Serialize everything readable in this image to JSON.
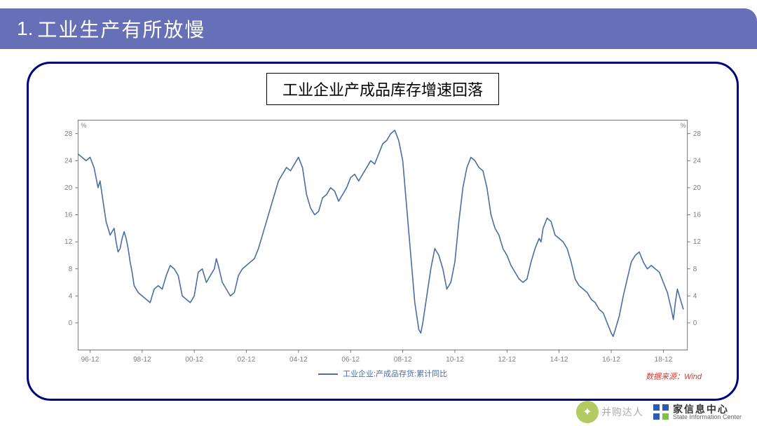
{
  "header": {
    "number": "1.",
    "title": "工业生产有所放慢"
  },
  "chart": {
    "type": "line",
    "title": "工业企业产成品库存增速回落",
    "title_fontsize": 22,
    "legend_label": "工业企业:产成品存货:累计同比",
    "source_label": "数据来源：Wind",
    "line_color": "#4a6fa5",
    "line_width": 1.6,
    "axis_color": "#5b5b5b",
    "tick_color": "#808080",
    "tick_fontsize": 10,
    "background_color": "#ffffff",
    "ylim": [
      -4,
      30
    ],
    "yticks": [
      0,
      4,
      8,
      12,
      16,
      20,
      24,
      28
    ],
    "y_unit": "%",
    "x_categories": [
      "96-12",
      "98-12",
      "00-12",
      "02-12",
      "04-12",
      "06-12",
      "08-12",
      "10-12",
      "12-12",
      "14-12",
      "16-12",
      "18-12"
    ],
    "x_positions": [
      0,
      26,
      52,
      78,
      104,
      130,
      156,
      182,
      208,
      234,
      260,
      286
    ],
    "x_domain": [
      -6,
      298
    ],
    "series": [
      {
        "name": "工业企业:产成品存货:累计同比",
        "color": "#4a6fa5",
        "values": [
          [
            -6,
            25
          ],
          [
            -4,
            24.5
          ],
          [
            -2,
            24
          ],
          [
            0,
            24.5
          ],
          [
            2,
            23
          ],
          [
            4,
            20
          ],
          [
            5,
            21
          ],
          [
            6,
            19
          ],
          [
            7,
            17
          ],
          [
            8,
            15
          ],
          [
            10,
            13
          ],
          [
            11,
            13.5
          ],
          [
            12,
            14
          ],
          [
            13,
            12
          ],
          [
            14,
            10.5
          ],
          [
            15,
            11
          ],
          [
            16,
            12.5
          ],
          [
            17,
            13.5
          ],
          [
            18,
            12.5
          ],
          [
            19,
            11
          ],
          [
            20,
            9
          ],
          [
            21,
            7.5
          ],
          [
            22,
            5.5
          ],
          [
            24,
            4.5
          ],
          [
            26,
            4
          ],
          [
            28,
            3.5
          ],
          [
            30,
            3
          ],
          [
            32,
            5
          ],
          [
            34,
            5.5
          ],
          [
            36,
            5
          ],
          [
            38,
            7
          ],
          [
            40,
            8.5
          ],
          [
            42,
            8
          ],
          [
            44,
            7
          ],
          [
            46,
            4
          ],
          [
            48,
            3.5
          ],
          [
            50,
            3
          ],
          [
            52,
            4
          ],
          [
            54,
            7.5
          ],
          [
            56,
            8
          ],
          [
            58,
            6
          ],
          [
            60,
            7
          ],
          [
            62,
            8
          ],
          [
            63,
            9.5
          ],
          [
            64,
            8.5
          ],
          [
            66,
            6
          ],
          [
            68,
            5
          ],
          [
            70,
            4
          ],
          [
            72,
            4.5
          ],
          [
            74,
            7
          ],
          [
            76,
            8
          ],
          [
            78,
            8.5
          ],
          [
            80,
            9
          ],
          [
            82,
            9.5
          ],
          [
            84,
            11
          ],
          [
            86,
            13
          ],
          [
            88,
            15
          ],
          [
            90,
            17
          ],
          [
            92,
            19
          ],
          [
            94,
            21
          ],
          [
            96,
            22
          ],
          [
            98,
            23
          ],
          [
            100,
            22.5
          ],
          [
            102,
            23.5
          ],
          [
            104,
            24.5
          ],
          [
            106,
            23
          ],
          [
            108,
            19
          ],
          [
            110,
            17
          ],
          [
            112,
            16
          ],
          [
            114,
            16.5
          ],
          [
            116,
            18.5
          ],
          [
            118,
            19
          ],
          [
            120,
            20
          ],
          [
            122,
            19.5
          ],
          [
            124,
            18
          ],
          [
            126,
            19
          ],
          [
            128,
            20
          ],
          [
            130,
            21.5
          ],
          [
            132,
            22
          ],
          [
            134,
            21
          ],
          [
            136,
            22
          ],
          [
            138,
            23
          ],
          [
            140,
            24
          ],
          [
            142,
            23.5
          ],
          [
            144,
            25
          ],
          [
            146,
            26.5
          ],
          [
            148,
            27
          ],
          [
            150,
            28
          ],
          [
            152,
            28.5
          ],
          [
            154,
            27
          ],
          [
            156,
            24
          ],
          [
            158,
            17
          ],
          [
            160,
            10
          ],
          [
            162,
            3
          ],
          [
            164,
            -1
          ],
          [
            165,
            -1.5
          ],
          [
            166,
            0
          ],
          [
            168,
            4
          ],
          [
            170,
            8
          ],
          [
            172,
            11
          ],
          [
            174,
            10
          ],
          [
            176,
            8
          ],
          [
            178,
            5
          ],
          [
            180,
            6
          ],
          [
            182,
            9
          ],
          [
            184,
            15
          ],
          [
            186,
            20
          ],
          [
            188,
            23
          ],
          [
            190,
            24.5
          ],
          [
            192,
            24
          ],
          [
            194,
            23
          ],
          [
            196,
            22.5
          ],
          [
            198,
            20
          ],
          [
            200,
            16
          ],
          [
            202,
            14
          ],
          [
            204,
            13
          ],
          [
            206,
            11
          ],
          [
            208,
            10
          ],
          [
            210,
            8.5
          ],
          [
            212,
            7.5
          ],
          [
            214,
            6.5
          ],
          [
            216,
            6
          ],
          [
            218,
            6.5
          ],
          [
            220,
            9
          ],
          [
            222,
            11
          ],
          [
            224,
            12.5
          ],
          [
            225,
            12
          ],
          [
            226,
            14
          ],
          [
            228,
            15.5
          ],
          [
            230,
            15
          ],
          [
            232,
            13
          ],
          [
            234,
            12.5
          ],
          [
            236,
            12
          ],
          [
            238,
            11
          ],
          [
            240,
            9
          ],
          [
            242,
            6.5
          ],
          [
            244,
            5.5
          ],
          [
            246,
            5
          ],
          [
            248,
            4.5
          ],
          [
            250,
            3.5
          ],
          [
            252,
            3
          ],
          [
            254,
            2
          ],
          [
            256,
            1.5
          ],
          [
            258,
            0
          ],
          [
            260,
            -1.5
          ],
          [
            261,
            -2
          ],
          [
            262,
            -1
          ],
          [
            264,
            1
          ],
          [
            266,
            4
          ],
          [
            268,
            6.5
          ],
          [
            270,
            9
          ],
          [
            272,
            10
          ],
          [
            274,
            10.5
          ],
          [
            276,
            9
          ],
          [
            278,
            8
          ],
          [
            280,
            8.5
          ],
          [
            282,
            8
          ],
          [
            284,
            7.5
          ],
          [
            286,
            6
          ],
          [
            288,
            4.5
          ],
          [
            290,
            2
          ],
          [
            291,
            0.5
          ],
          [
            292,
            3
          ],
          [
            293,
            5
          ],
          [
            294,
            4
          ],
          [
            296,
            2
          ]
        ]
      }
    ]
  },
  "footer": {
    "watermark_text": "并购达人",
    "org_cn": "家信息中心",
    "org_en": "State Information Center"
  }
}
